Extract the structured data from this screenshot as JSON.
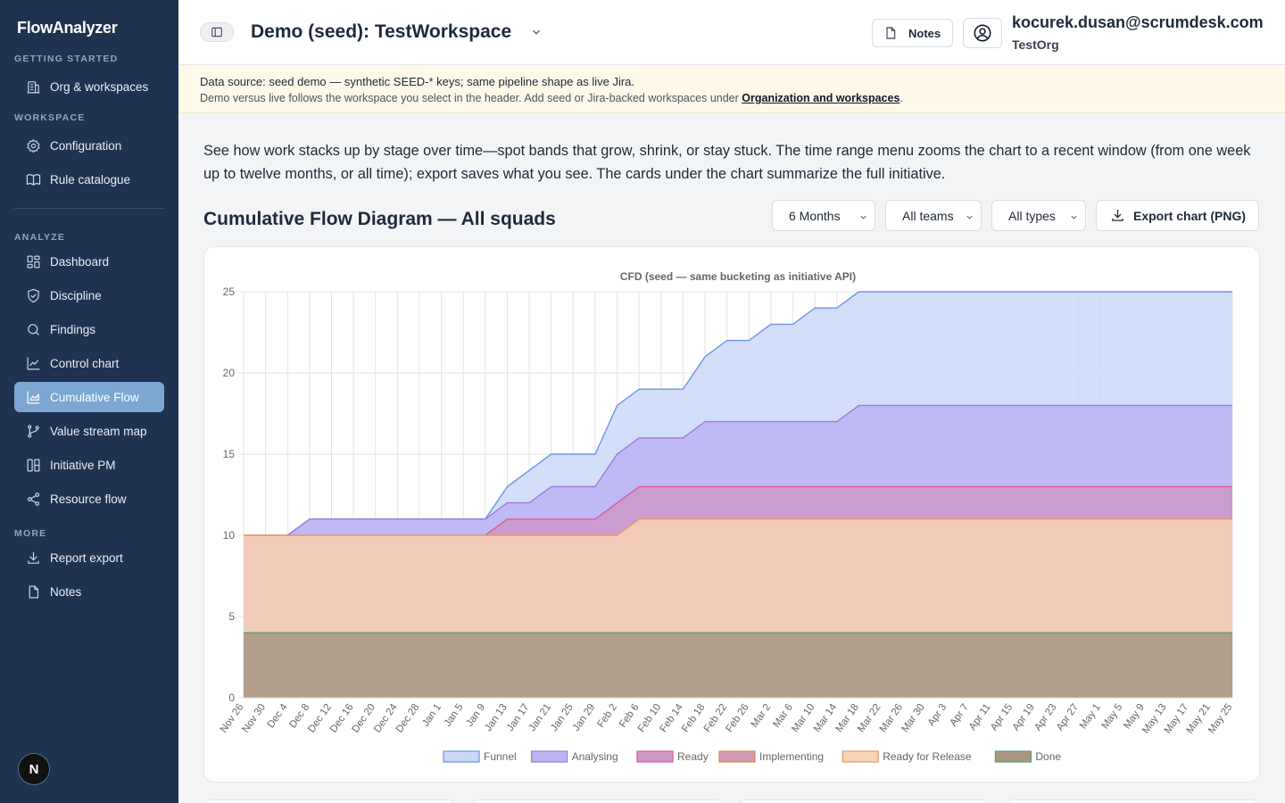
{
  "app": {
    "brand": "FlowAnalyzer"
  },
  "sidebar": {
    "sections": {
      "getting_started": "GETTING STARTED",
      "workspace": "WORKSPACE",
      "analyze": "ANALYZE",
      "more": "MORE"
    },
    "items": [
      {
        "label": "Org & workspaces",
        "icon": "building-icon"
      },
      {
        "label": "Configuration",
        "icon": "gear-icon"
      },
      {
        "label": "Rule catalogue",
        "icon": "book-icon"
      },
      {
        "label": "Dashboard",
        "icon": "grid-icon"
      },
      {
        "label": "Discipline",
        "icon": "shield-check-icon"
      },
      {
        "label": "Findings",
        "icon": "search-icon"
      },
      {
        "label": "Control chart",
        "icon": "line-chart-icon"
      },
      {
        "label": "Cumulative Flow",
        "icon": "area-chart-icon",
        "active": true
      },
      {
        "label": "Value stream map",
        "icon": "git-branch-icon"
      },
      {
        "label": "Initiative PM",
        "icon": "columns-icon"
      },
      {
        "label": "Resource flow",
        "icon": "share-icon"
      },
      {
        "label": "Report export",
        "icon": "download-icon"
      },
      {
        "label": "Notes",
        "icon": "file-icon"
      }
    ],
    "footer_badge": "N"
  },
  "header": {
    "workspace_title": "Demo (seed): TestWorkspace",
    "notes_label": "Notes",
    "user_email": "kocurek.dusan@scrumdesk.com",
    "user_org": "TestOrg"
  },
  "banner": {
    "line1": "Data source: seed demo — synthetic SEED-* keys; same pipeline shape as live Jira.",
    "line2_prefix": "Demo versus live follows the workspace you select in the header. Add seed or Jira-backed workspaces under ",
    "line2_link": "Organization and workspaces",
    "line2_suffix": "."
  },
  "main": {
    "intro": "See how work stacks up by stage over time—spot bands that grow, shrink, or stay stuck. The time range menu zooms the chart to a recent window (from one week up to twelve months, or all time); export saves what you see. The cards under the chart summarize the full initiative.",
    "title": "Cumulative Flow Diagram — All squads",
    "filters": {
      "range": "6 Months",
      "teams": "All teams",
      "types": "All types"
    },
    "export_label": "Export chart (PNG)"
  },
  "colors": {
    "sidebar_bg": "#1e3350",
    "active_item": "#7ba7d1",
    "banner_bg": "#fdf8e8"
  },
  "chart_data": {
    "type": "area",
    "stacked": true,
    "title": "CFD (seed — same bucketing as initiative API)",
    "ylim": [
      0,
      25
    ],
    "yticks": [
      0,
      5,
      10,
      15,
      20,
      25
    ],
    "grid": true,
    "legend_position": "bottom",
    "x": [
      "Nov 26",
      "Nov 30",
      "Dec 4",
      "Dec 8",
      "Dec 12",
      "Dec 16",
      "Dec 20",
      "Dec 24",
      "Dec 28",
      "Jan 1",
      "Jan 5",
      "Jan 9",
      "Jan 13",
      "Jan 17",
      "Jan 21",
      "Jan 25",
      "Jan 29",
      "Feb 2",
      "Feb 6",
      "Feb 10",
      "Feb 14",
      "Feb 18",
      "Feb 22",
      "Feb 26",
      "Mar 2",
      "Mar 6",
      "Mar 10",
      "Mar 14",
      "Mar 18",
      "Mar 22",
      "Mar 26",
      "Mar 30",
      "Apr 3",
      "Apr 7",
      "Apr 11",
      "Apr 15",
      "Apr 19",
      "Apr 23",
      "Apr 27",
      "May 1",
      "May 5",
      "May 9",
      "May 13",
      "May 17",
      "May 21",
      "May 25"
    ],
    "cumulative_top": {
      "Funnel": [
        10,
        10,
        10,
        11,
        11,
        11,
        11,
        11,
        11,
        11,
        11,
        11,
        13,
        14,
        15,
        15,
        15,
        18,
        19,
        19,
        19,
        21,
        22,
        22,
        23,
        23,
        24,
        24,
        25,
        25,
        25,
        25,
        25,
        25,
        25,
        25,
        25,
        25,
        25,
        25,
        25,
        25,
        25,
        25,
        25,
        25
      ],
      "Analysing": [
        10,
        10,
        10,
        11,
        11,
        11,
        11,
        11,
        11,
        11,
        11,
        11,
        12,
        12,
        13,
        13,
        13,
        15,
        16,
        16,
        16,
        17,
        17,
        17,
        17,
        17,
        17,
        17,
        18,
        18,
        18,
        18,
        18,
        18,
        18,
        18,
        18,
        18,
        18,
        18,
        18,
        18,
        18,
        18,
        18,
        18
      ],
      "Ready": [
        10,
        10,
        10,
        10,
        10,
        10,
        10,
        10,
        10,
        10,
        10,
        10,
        11,
        11,
        11,
        11,
        11,
        12,
        13,
        13,
        13,
        13,
        13,
        13,
        13,
        13,
        13,
        13,
        13,
        13,
        13,
        13,
        13,
        13,
        13,
        13,
        13,
        13,
        13,
        13,
        13,
        13,
        13,
        13,
        13,
        13
      ],
      "Implementing": [
        10,
        10,
        10,
        10,
        10,
        10,
        10,
        10,
        10,
        10,
        10,
        10,
        10,
        10,
        10,
        10,
        10,
        10,
        11,
        11,
        11,
        11,
        11,
        11,
        11,
        11,
        11,
        11,
        11,
        11,
        11,
        11,
        11,
        11,
        11,
        11,
        11,
        11,
        11,
        11,
        11,
        11,
        11,
        11,
        11,
        11
      ],
      "Ready for Release": [
        10,
        10,
        10,
        10,
        10,
        10,
        10,
        10,
        10,
        10,
        10,
        10,
        10,
        10,
        10,
        10,
        10,
        10,
        11,
        11,
        11,
        11,
        11,
        11,
        11,
        11,
        11,
        11,
        11,
        11,
        11,
        11,
        11,
        11,
        11,
        11,
        11,
        11,
        11,
        11,
        11,
        11,
        11,
        11,
        11,
        11
      ],
      "Done": [
        4,
        4,
        4,
        4,
        4,
        4,
        4,
        4,
        4,
        4,
        4,
        4,
        4,
        4,
        4,
        4,
        4,
        4,
        4,
        4,
        4,
        4,
        4,
        4,
        4,
        4,
        4,
        4,
        4,
        4,
        4,
        4,
        4,
        4,
        4,
        4,
        4,
        4,
        4,
        4,
        4,
        4,
        4,
        4,
        4,
        4
      ]
    },
    "series": [
      {
        "name": "Funnel",
        "fill": "#cbd8f7",
        "stroke": "#6f93e8"
      },
      {
        "name": "Analysing",
        "fill": "#bcb4f3",
        "stroke": "#9b7ae0"
      },
      {
        "name": "Ready",
        "fill": "#cd97c8",
        "stroke": "#e05a9a"
      },
      {
        "name": "Implementing",
        "fill": "#cf9ab0",
        "stroke": "#e0884a"
      },
      {
        "name": "Ready for Release",
        "fill": "#f7d3b8",
        "stroke": "#e89b6a"
      },
      {
        "name": "Done",
        "fill": "#a89582",
        "stroke": "#5aa06a"
      }
    ]
  }
}
